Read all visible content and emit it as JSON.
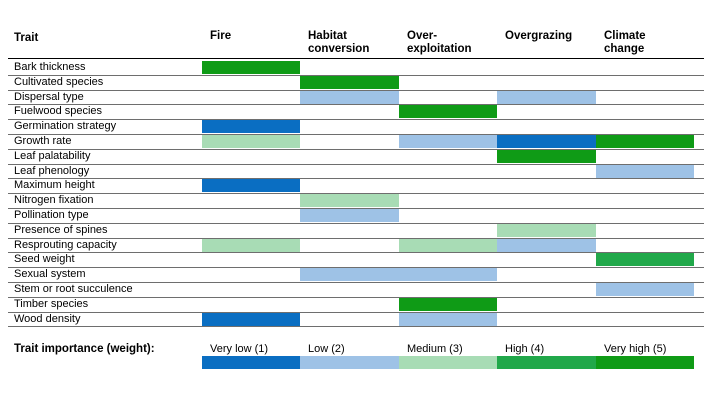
{
  "header": {
    "trait": "Trait",
    "columns": [
      [
        "Fire"
      ],
      [
        "Habitat",
        "conversion"
      ],
      [
        "Over-",
        "exploitation"
      ],
      [
        "Overgrazing"
      ],
      [
        "Climate",
        "change"
      ]
    ]
  },
  "weights": [
    {
      "label": "Very low (1)",
      "color": "#0a6ec2"
    },
    {
      "label": "Low (2)",
      "color": "#9ec2e6"
    },
    {
      "label": "Medium (3)",
      "color": "#a8dcb5"
    },
    {
      "label": "High (4)",
      "color": "#21a84a"
    },
    {
      "label": "Very high (5)",
      "color": "#0f9b16"
    }
  ],
  "rows": [
    {
      "label": "Bark thickness",
      "values": [
        5,
        0,
        0,
        0,
        0
      ]
    },
    {
      "label": "Cultivated species",
      "values": [
        0,
        5,
        0,
        0,
        0
      ]
    },
    {
      "label": "Dispersal type",
      "values": [
        0,
        2,
        0,
        2,
        0
      ]
    },
    {
      "label": "Fuelwood species",
      "values": [
        0,
        0,
        5,
        0,
        0
      ]
    },
    {
      "label": "Germination strategy",
      "values": [
        1,
        0,
        0,
        0,
        0
      ]
    },
    {
      "label": "Growth rate",
      "values": [
        3,
        0,
        2,
        1,
        5
      ]
    },
    {
      "label": "Leaf palatability",
      "values": [
        0,
        0,
        0,
        5,
        0
      ]
    },
    {
      "label": "Leaf phenology",
      "values": [
        0,
        0,
        0,
        0,
        2
      ]
    },
    {
      "label": "Maximum height",
      "values": [
        1,
        0,
        0,
        0,
        0
      ]
    },
    {
      "label": "Nitrogen fixation",
      "values": [
        0,
        3,
        0,
        0,
        0
      ]
    },
    {
      "label": "Pollination type",
      "values": [
        0,
        2,
        0,
        0,
        0
      ]
    },
    {
      "label": "Presence of spines",
      "values": [
        0,
        0,
        0,
        3,
        0
      ]
    },
    {
      "label": "Resprouting capacity",
      "values": [
        3,
        0,
        3,
        2,
        0
      ]
    },
    {
      "label": "Seed weight",
      "values": [
        0,
        0,
        0,
        0,
        4
      ]
    },
    {
      "label": "Sexual system",
      "values": [
        0,
        2,
        2,
        0,
        0
      ]
    },
    {
      "label": "Stem or root succulence",
      "values": [
        0,
        0,
        0,
        0,
        2
      ]
    },
    {
      "label": "Timber species",
      "values": [
        0,
        0,
        5,
        0,
        0
      ]
    },
    {
      "label": "Wood density",
      "values": [
        1,
        0,
        2,
        0,
        0
      ]
    }
  ],
  "footer": {
    "title": "Trait importance (weight):"
  }
}
